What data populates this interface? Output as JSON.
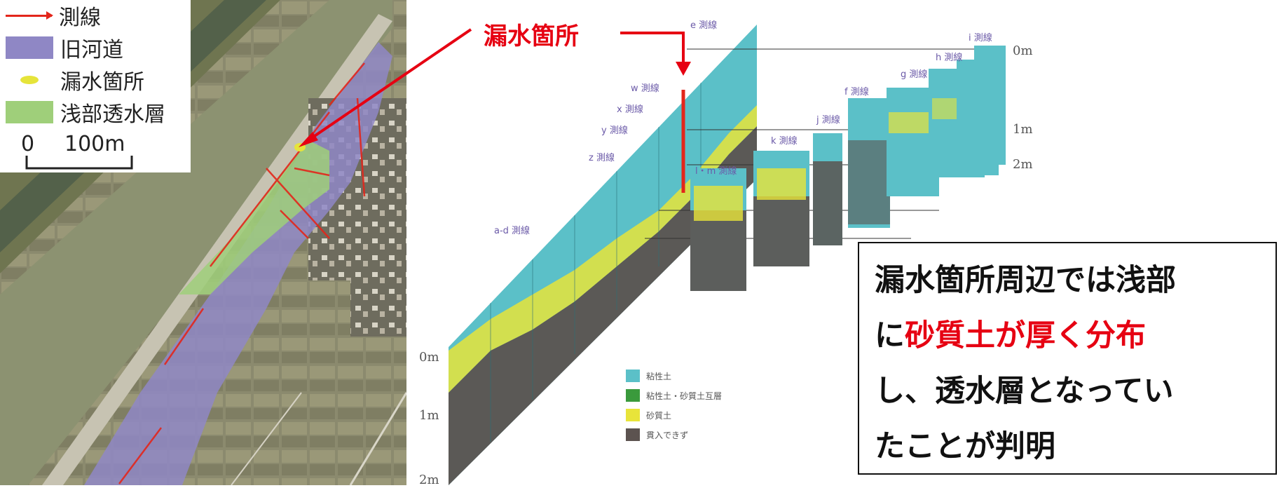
{
  "legend": {
    "items": [
      {
        "label": "測線",
        "symbol": "line",
        "color": "#e3261b"
      },
      {
        "label": "旧河道",
        "symbol": "box",
        "color": "#8f87c5"
      },
      {
        "label": "漏水箇所",
        "symbol": "dot",
        "color": "#e6e43a"
      },
      {
        "label": "浅部透水層",
        "symbol": "box",
        "color": "#9fcf7a"
      }
    ],
    "scale": {
      "start": "0",
      "end": "100m"
    }
  },
  "callout": {
    "label": "漏水箇所",
    "color": "#e60012"
  },
  "profiles": {
    "labels": [
      "e 測線",
      "w 測線",
      "x 測線",
      "y 測線",
      "z 測線",
      "a-d 測線",
      "f 測線",
      "g 測線",
      "h 測線",
      "i 測線",
      "j 測線",
      "k 測線",
      "l・m 測線"
    ],
    "depth_ticks_right": [
      "0m",
      "1m",
      "2m"
    ],
    "depth_ticks_left": [
      "0m",
      "1m",
      "2m"
    ]
  },
  "soil_legend": {
    "items": [
      {
        "label": "粘性土",
        "color": "#5bc0c8"
      },
      {
        "label": "粘性土・砂質土互層",
        "color": "#3a9a3c"
      },
      {
        "label": "砂質土",
        "color": "#e8e43a"
      },
      {
        "label": "貫入できず",
        "color": "#5c5350"
      }
    ]
  },
  "conclusion": {
    "line1": "漏水箇所周辺では浅部",
    "line2_prefix": "に",
    "line2_highlight": "砂質土が厚く分布",
    "line3": "し、透水層となってい",
    "line4": "たことが判明"
  }
}
